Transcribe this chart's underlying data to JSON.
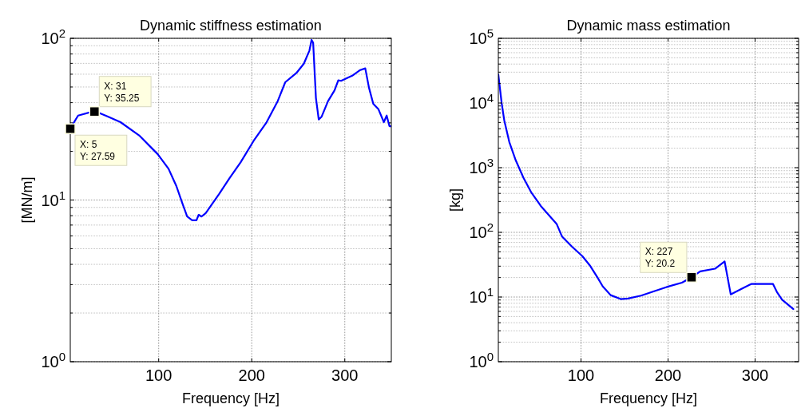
{
  "chart_data": [
    {
      "type": "line",
      "title": "Dynamic stiffness estimation",
      "xlabel": "Frequency [Hz]",
      "ylabel": "[MN/m]",
      "log": "y",
      "grid": true,
      "xlim": [
        5,
        350
      ],
      "ylim": [
        1,
        100
      ],
      "xticks": [
        100,
        200,
        300
      ],
      "yticks": [
        {
          "value": 1,
          "label": "10$^{0}$"
        },
        {
          "value": 10,
          "label": "10$^{1}$"
        },
        {
          "value": 100,
          "label": "10$^{2}$"
        }
      ],
      "series": [
        {
          "color": "#0000ff",
          "x": [
            5,
            13.4,
            31,
            44.9,
            59,
            79,
            99,
            110.6,
            119,
            125,
            130.6,
            136,
            140.6,
            143,
            146,
            150.6,
            156,
            165,
            176,
            188,
            202,
            216,
            228,
            236,
            248,
            256,
            262,
            264.3,
            266,
            269,
            272,
            275,
            282,
            289,
            293,
            296,
            308,
            316,
            322,
            326,
            330.6,
            336,
            342,
            345,
            348,
            350
          ],
          "values": [
            27.7,
            33.3,
            35.5,
            32.9,
            30.3,
            25.1,
            19.2,
            15.6,
            12.2,
            9.7,
            7.9,
            7.5,
            7.5,
            8.1,
            7.9,
            8.3,
            9.2,
            10.9,
            13.6,
            17.1,
            23.2,
            30.3,
            41,
            53.5,
            61,
            69.7,
            84,
            97.8,
            94,
            42.7,
            31.5,
            32.7,
            40.9,
            47.7,
            55,
            54.6,
            58.7,
            63.4,
            65.2,
            49.5,
            39.4,
            36.6,
            30.3,
            33.3,
            28.6,
            28.6
          ]
        }
      ],
      "annotations": [
        {
          "text": "X: 31\nY: 35.25",
          "x": 31,
          "y": 35.25
        },
        {
          "text": "X: 5\nY: 27.59",
          "x": 5,
          "y": 27.59
        }
      ]
    },
    {
      "type": "line",
      "title": "Dynamic mass estimation",
      "xlabel": "Frequency [Hz]",
      "ylabel": "[kg]",
      "log": "y",
      "grid": true,
      "xlim": [
        5,
        350
      ],
      "ylim": [
        1,
        100000
      ],
      "xticks": [
        100,
        200,
        300
      ],
      "yticks": [
        {
          "value": 1,
          "label": "10$^{0}$"
        },
        {
          "value": 10,
          "label": "10$^{1}$"
        },
        {
          "value": 100,
          "label": "10$^{2}$"
        },
        {
          "value": 1000,
          "label": "10$^{3}$"
        },
        {
          "value": 10000,
          "label": "10$^{4}$"
        },
        {
          "value": 100000,
          "label": "10$^{5}$"
        }
      ],
      "series": [
        {
          "color": "#0000ff",
          "x": [
            5,
            8.8,
            11.8,
            17.6,
            25,
            33.8,
            42.6,
            54.4,
            72,
            78,
            89.7,
            101.5,
            110,
            119,
            125,
            134,
            145.6,
            154,
            169,
            184,
            198.5,
            216,
            227,
            237,
            254,
            265,
            272,
            284,
            294,
            295.6,
            320.6,
            325,
            331,
            344
          ],
          "values": [
            27500,
            10000,
            5400,
            2500,
            1300,
            700,
            420,
            250,
            135,
            87,
            60,
            43,
            31,
            20,
            14.6,
            10.7,
            9.3,
            9.5,
            10.5,
            12.3,
            14.3,
            16.7,
            20.2,
            24.9,
            27.4,
            35.5,
            11,
            13.3,
            15.5,
            15.9,
            15.9,
            12,
            9.1,
            6.5
          ]
        }
      ],
      "annotations": [
        {
          "text": "X: 227\nY: 20.2",
          "x": 227,
          "y": 20.2
        }
      ]
    }
  ]
}
